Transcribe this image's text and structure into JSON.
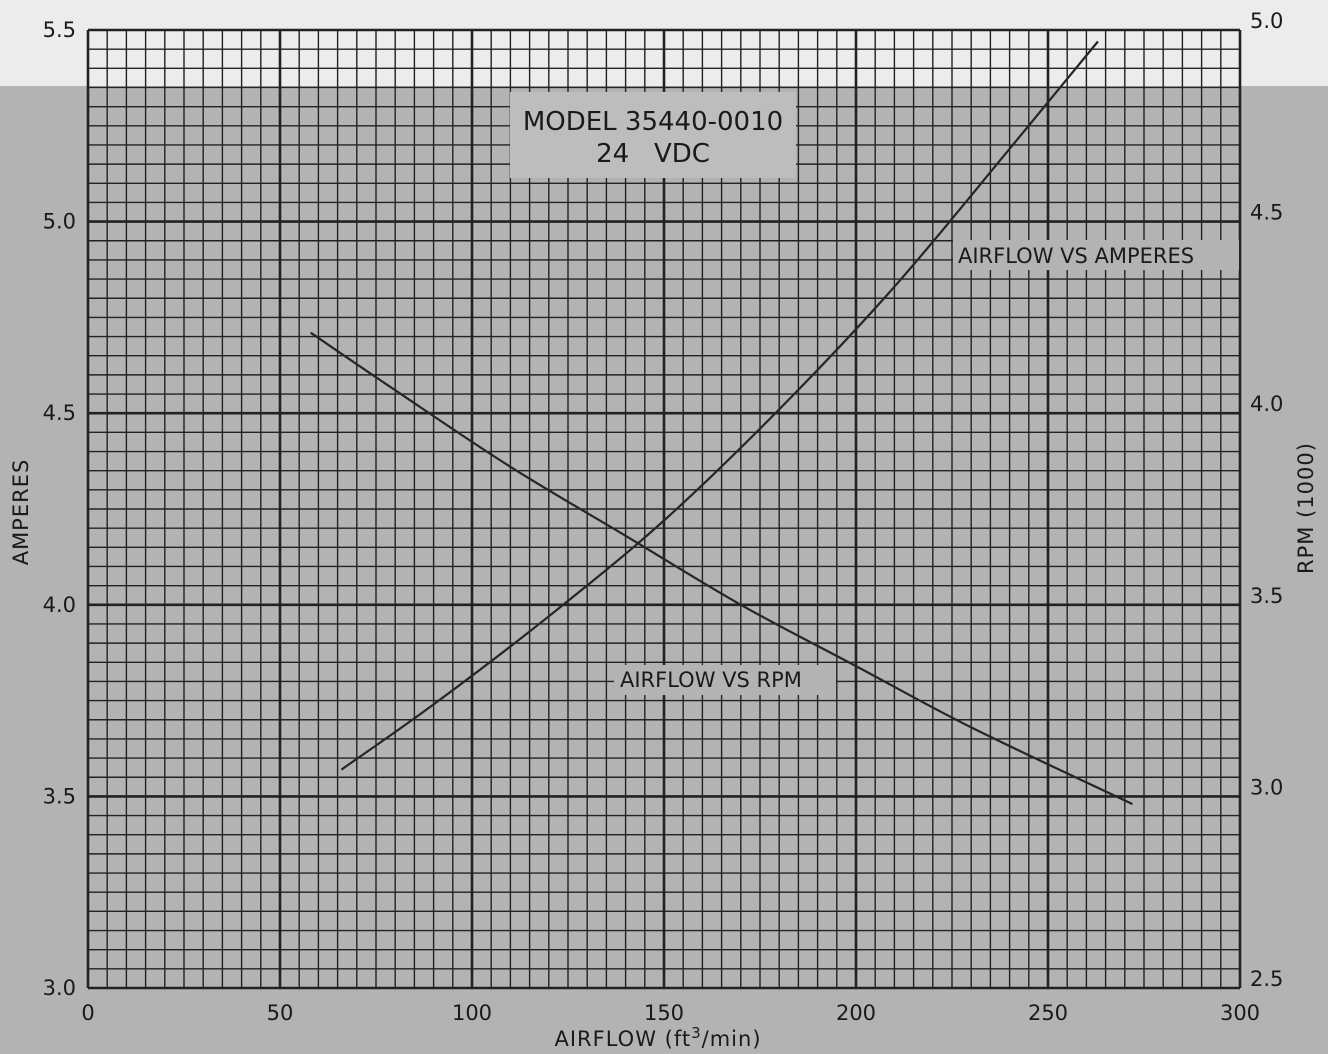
{
  "chart_data": {
    "type": "line",
    "title": "MODEL 35440-0010",
    "subtitle": "24   VDC",
    "xlabel": "AIRFLOW (ft3/min)",
    "xlabel_main": "AIRFLOW (ft",
    "xlabel_sup": "3",
    "xlabel_end": "/min)",
    "ylabel_left": "AMPERES",
    "ylabel_right": "RPM (1000)",
    "xlim": [
      0,
      300
    ],
    "ylim_left": [
      3.0,
      5.5
    ],
    "ylim_right": [
      2.5,
      5.0
    ],
    "x_ticks": [
      "0",
      "50",
      "100",
      "150",
      "200",
      "250",
      "300"
    ],
    "y_left_ticks": [
      "3.0",
      "3.5",
      "4.0",
      "4.5",
      "5.0",
      "5.5"
    ],
    "y_right_ticks": [
      "2.5",
      "3.0",
      "3.5",
      "4.0",
      "4.5",
      "5.0"
    ],
    "grid": true,
    "background_colors": {
      "page": "#b3b3b3",
      "top_band": "#ececec",
      "line": "#262626"
    },
    "series": [
      {
        "name": "AIRFLOW VS AMPERES",
        "axis": "left",
        "x": [
          66,
          90,
          120,
          150,
          180,
          210,
          240,
          263
        ],
        "y": [
          3.57,
          3.74,
          3.97,
          4.22,
          4.51,
          4.83,
          5.19,
          5.47
        ]
      },
      {
        "name": "AIRFLOW VS RPM",
        "axis": "right",
        "x": [
          58,
          80,
          110,
          140,
          170,
          200,
          230,
          272
        ],
        "y": [
          4.21,
          4.06,
          3.86,
          3.68,
          3.5,
          3.34,
          3.18,
          2.98
        ]
      }
    ],
    "annotations": [
      {
        "text": "AIRFLOW VS AMPERES",
        "x": 225,
        "y_left": 4.93
      },
      {
        "text": "AIRFLOW VS RPM",
        "x": 147,
        "y_left": 3.83
      }
    ]
  }
}
